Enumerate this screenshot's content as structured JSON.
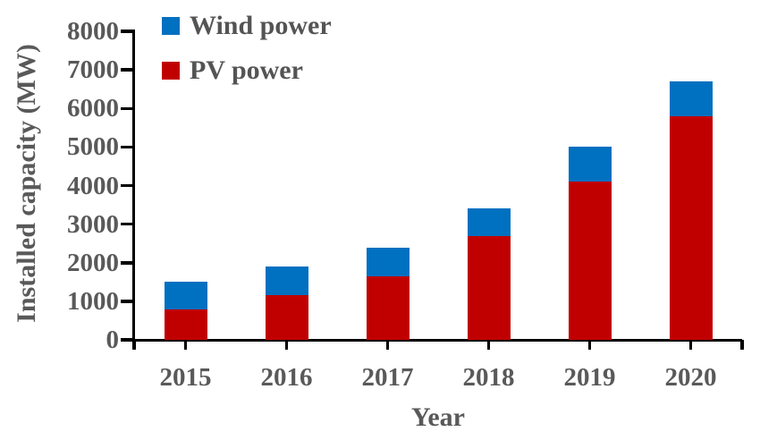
{
  "figure": {
    "background": "#ffffff",
    "text_color": "#595959",
    "axis_color": "#000000"
  },
  "legend": {
    "position": "top-left",
    "items": [
      {
        "label": "Wind power",
        "color": "#0070C0"
      },
      {
        "label": "PV power",
        "color": "#C00000"
      }
    ]
  },
  "chart_data": {
    "type": "bar",
    "stacked": true,
    "title": "",
    "xlabel": "Year",
    "ylabel": "Installed capacity (MW)",
    "categories": [
      "2015",
      "2016",
      "2017",
      "2018",
      "2019",
      "2020"
    ],
    "series": [
      {
        "name": "PV power",
        "color": "#C00000",
        "values": [
          800,
          1150,
          1650,
          2700,
          4100,
          5800
        ]
      },
      {
        "name": "Wind power",
        "color": "#0070C0",
        "values": [
          700,
          750,
          750,
          700,
          900,
          900
        ]
      }
    ],
    "totals": [
      1500,
      1900,
      2400,
      3400,
      5000,
      6700
    ],
    "ylim": [
      0,
      8000
    ],
    "y_tick_step": 1000,
    "y_ticks": [
      0,
      1000,
      2000,
      3000,
      4000,
      5000,
      6000,
      7000,
      8000
    ],
    "grid": false,
    "legend_position": "top-left"
  }
}
